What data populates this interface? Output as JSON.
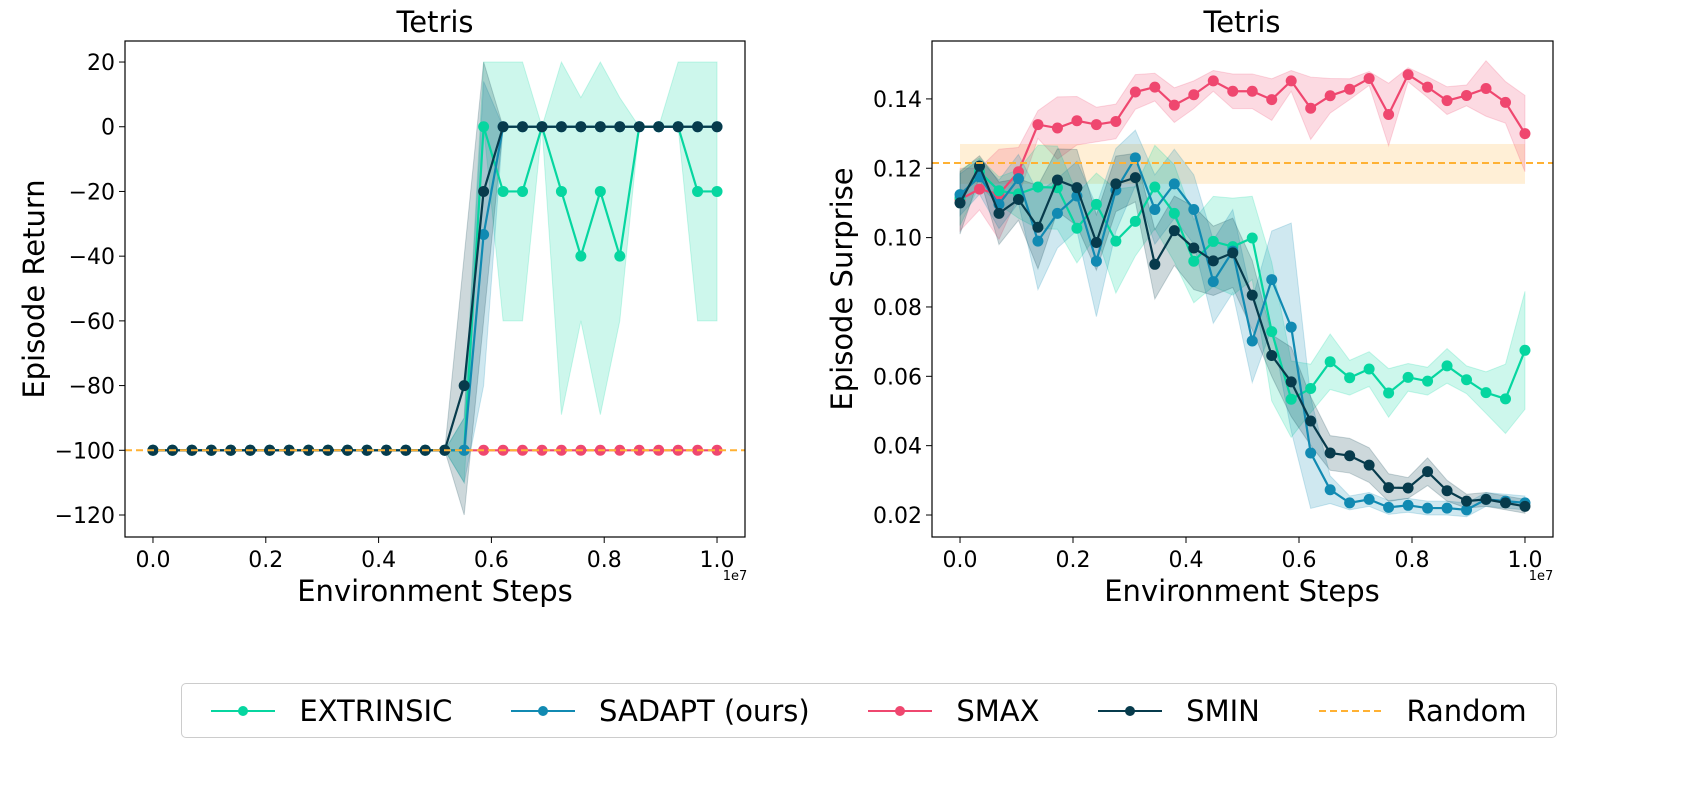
{
  "chart_data": [
    {
      "type": "line",
      "title": "Tetris",
      "xlabel": "Environment Steps",
      "ylabel": "Episode Return",
      "x_offset_label": "1e7",
      "xlim": [
        -0.0496,
        1.0496
      ],
      "ylim": [
        -126.8,
        26.5
      ],
      "xticks": [
        0.0,
        0.2,
        0.4,
        0.6,
        0.8,
        1.0
      ],
      "xtick_labels": [
        "0.0",
        "0.2",
        "0.4",
        "0.6",
        "0.8",
        "1.0"
      ],
      "yticks": [
        20,
        0,
        -20,
        -40,
        -60,
        -80,
        -100,
        -120
      ],
      "ytick_labels": [
        "20",
        "0",
        "−20",
        "−40",
        "−60",
        "−80",
        "−100",
        "−120"
      ],
      "x_scale": 10000000,
      "grid": false,
      "random_baseline": {
        "name": "Random",
        "value": -100,
        "lower": -100,
        "upper": -100
      },
      "series": [
        {
          "name": "SMAX",
          "values": [
            -100,
            -100,
            -100,
            -100,
            -100,
            -100,
            -100,
            -100,
            -100,
            -100,
            -100,
            -100,
            -100,
            -100,
            -100,
            -100,
            -100,
            -100,
            -100,
            -100,
            -100,
            -100,
            -100,
            -100,
            -100,
            -100,
            -100,
            -100,
            -100,
            -100
          ],
          "lower": [
            -100,
            -100,
            -100,
            -100,
            -100,
            -100,
            -100,
            -100,
            -100,
            -100,
            -100,
            -100,
            -100,
            -100,
            -100,
            -100,
            -100,
            -100,
            -100,
            -100,
            -100,
            -100,
            -100,
            -100,
            -100,
            -100,
            -100,
            -100,
            -100,
            -100
          ],
          "upper": [
            -100,
            -100,
            -100,
            -100,
            -100,
            -100,
            -100,
            -100,
            -100,
            -100,
            -100,
            -100,
            -100,
            -100,
            -100,
            -100,
            -100,
            -100,
            -100,
            -100,
            -100,
            -100,
            -100,
            -100,
            -100,
            -100,
            -100,
            -100,
            -100,
            -100
          ]
        },
        {
          "name": "EXTRINSIC",
          "values": [
            -100,
            -100,
            -100,
            -100,
            -100,
            -100,
            -100,
            -100,
            -100,
            -100,
            -100,
            -100,
            -100,
            -100,
            -100,
            -100,
            -100,
            0,
            -20,
            -20,
            0,
            -20,
            -40,
            -20,
            -40,
            0,
            0,
            0,
            -20,
            -20
          ],
          "lower": [
            -100,
            -100,
            -100,
            -100,
            -100,
            -100,
            -100,
            -100,
            -100,
            -100,
            -100,
            -100,
            -100,
            -100,
            -100,
            -100,
            -110,
            0,
            -60,
            -60,
            0,
            -89,
            -60,
            -89,
            -60,
            0,
            0,
            0,
            -60,
            -60
          ],
          "upper": [
            -100,
            -100,
            -100,
            -100,
            -100,
            -100,
            -100,
            -100,
            -100,
            -100,
            -100,
            -100,
            -100,
            -100,
            -100,
            -100,
            -90,
            20,
            20,
            20,
            0,
            20,
            9,
            20,
            9,
            0,
            0,
            20,
            20,
            20
          ]
        },
        {
          "name": "SADAPT (ours)",
          "values": [
            -100,
            -100,
            -100,
            -100,
            -100,
            -100,
            -100,
            -100,
            -100,
            -100,
            -100,
            -100,
            -100,
            -100,
            -100,
            -100,
            -100,
            -33.3,
            0,
            0,
            0,
            0,
            0,
            0,
            0,
            0,
            0,
            0,
            0,
            0
          ],
          "lower": [
            -100,
            -100,
            -100,
            -100,
            -100,
            -100,
            -100,
            -100,
            -100,
            -100,
            -100,
            -100,
            -100,
            -100,
            -100,
            -100,
            -110,
            -80,
            0,
            0,
            0,
            0,
            0,
            0,
            0,
            0,
            0,
            0,
            0,
            0
          ],
          "upper": [
            -100,
            -100,
            -100,
            -100,
            -100,
            -100,
            -100,
            -100,
            -100,
            -100,
            -100,
            -100,
            -100,
            -100,
            -100,
            -100,
            -90,
            14,
            0,
            0,
            0,
            0,
            0,
            0,
            0,
            0,
            0,
            0,
            0,
            0
          ]
        },
        {
          "name": "SMIN",
          "values": [
            -100,
            -100,
            -100,
            -100,
            -100,
            -100,
            -100,
            -100,
            -100,
            -100,
            -100,
            -100,
            -100,
            -100,
            -100,
            -100,
            -80,
            -20,
            0,
            0,
            0,
            0,
            0,
            0,
            0,
            0,
            0,
            0,
            0,
            0
          ],
          "lower": [
            -100,
            -100,
            -100,
            -100,
            -100,
            -100,
            -100,
            -100,
            -100,
            -100,
            -100,
            -100,
            -100,
            -100,
            -100,
            -100,
            -120,
            -60,
            0,
            0,
            0,
            0,
            0,
            0,
            0,
            0,
            0,
            0,
            0,
            0
          ],
          "upper": [
            -100,
            -100,
            -100,
            -100,
            -100,
            -100,
            -100,
            -100,
            -100,
            -100,
            -100,
            -100,
            -100,
            -100,
            -100,
            -100,
            -40,
            20,
            0,
            0,
            0,
            0,
            0,
            0,
            0,
            0,
            0,
            0,
            0,
            0
          ]
        }
      ]
    },
    {
      "type": "line",
      "title": "Tetris",
      "xlabel": "Environment Steps",
      "ylabel": "Episode Surprise",
      "x_offset_label": "1e7",
      "xlim": [
        -0.0496,
        1.0496
      ],
      "ylim": [
        0.01366,
        0.1567
      ],
      "xticks": [
        0.0,
        0.2,
        0.4,
        0.6,
        0.8,
        1.0
      ],
      "xtick_labels": [
        "0.0",
        "0.2",
        "0.4",
        "0.6",
        "0.8",
        "1.0"
      ],
      "yticks": [
        0.14,
        0.12,
        0.1,
        0.08,
        0.06,
        0.04,
        0.02
      ],
      "ytick_labels": [
        "0.14",
        "0.12",
        "0.10",
        "0.08",
        "0.06",
        "0.04",
        "0.02"
      ],
      "x_scale": 10000000,
      "grid": false,
      "random_baseline": {
        "name": "Random",
        "value": 0.1215,
        "lower": 0.1155,
        "upper": 0.127
      },
      "series": [
        {
          "name": "SMAX",
          "values": [
            0.111,
            0.114,
            0.1125,
            0.119,
            0.1326,
            0.1316,
            0.1337,
            0.1326,
            0.1335,
            0.142,
            0.1434,
            0.1382,
            0.1412,
            0.1452,
            0.1422,
            0.1422,
            0.1398,
            0.1452,
            0.1373,
            0.1409,
            0.1428,
            0.1459,
            0.1355,
            0.147,
            0.1434,
            0.1395,
            0.141,
            0.143,
            0.139,
            0.13
          ],
          "halfwidth": [
            0.009,
            0.006,
            0.013,
            0.007,
            0.004,
            0.009,
            0.007,
            0.005,
            0.005,
            0.005,
            0.004,
            0.005,
            0.004,
            0.003,
            0.005,
            0.005,
            0.006,
            0.003,
            0.009,
            0.005,
            0.003,
            0.002,
            0.009,
            0.002,
            0.003,
            0.004,
            0.003,
            0.008,
            0.006,
            0.011
          ]
        },
        {
          "name": "EXTRINSIC",
          "values": [
            0.1115,
            0.119,
            0.1135,
            0.1126,
            0.1146,
            0.1144,
            0.1027,
            0.1096,
            0.099,
            0.1047,
            0.1146,
            0.107,
            0.0932,
            0.0989,
            0.0974,
            0.0999,
            0.0729,
            0.0534,
            0.0565,
            0.0642,
            0.0596,
            0.0621,
            0.0552,
            0.0597,
            0.0586,
            0.063,
            0.059,
            0.0553,
            0.0535,
            0.0675
          ],
          "halfwidth": [
            0.008,
            0.004,
            0.004,
            0.007,
            0.012,
            0.012,
            0.01,
            0.009,
            0.015,
            0.01,
            0.012,
            0.014,
            0.012,
            0.013,
            0.014,
            0.012,
            0.02,
            0.011,
            0.007,
            0.008,
            0.005,
            0.005,
            0.007,
            0.004,
            0.004,
            0.005,
            0.004,
            0.006,
            0.01,
            0.017
          ]
        },
        {
          "name": "SADAPT (ours)",
          "values": [
            0.1124,
            0.1175,
            0.1096,
            0.117,
            0.099,
            0.107,
            0.112,
            0.0932,
            0.1137,
            0.123,
            0.1081,
            0.1155,
            0.1081,
            0.0873,
            0.0961,
            0.0702,
            0.0879,
            0.0742,
            0.0379,
            0.0273,
            0.0235,
            0.0245,
            0.0222,
            0.0228,
            0.022,
            0.022,
            0.0215,
            0.0245,
            0.024,
            0.0235
          ],
          "halfwidth": [
            0.006,
            0.005,
            0.007,
            0.007,
            0.014,
            0.01,
            0.01,
            0.016,
            0.012,
            0.008,
            0.01,
            0.01,
            0.01,
            0.012,
            0.012,
            0.012,
            0.014,
            0.03,
            0.016,
            0.004,
            0.002,
            0.002,
            0.002,
            0.002,
            0.002,
            0.002,
            0.002,
            0.002,
            0.002,
            0.002
          ]
        },
        {
          "name": "SMIN",
          "values": [
            0.11,
            0.1206,
            0.107,
            0.111,
            0.103,
            0.1166,
            0.1144,
            0.0986,
            0.1155,
            0.1173,
            0.0923,
            0.102,
            0.097,
            0.0933,
            0.0956,
            0.0834,
            0.066,
            0.0584,
            0.0471,
            0.0379,
            0.0371,
            0.0344,
            0.0279,
            0.0278,
            0.0325,
            0.027,
            0.024,
            0.0245,
            0.0235,
            0.0225
          ],
          "halfwidth": [
            0.009,
            0.003,
            0.009,
            0.006,
            0.012,
            0.009,
            0.011,
            0.008,
            0.008,
            0.007,
            0.01,
            0.01,
            0.012,
            0.01,
            0.01,
            0.01,
            0.006,
            0.01,
            0.007,
            0.005,
            0.005,
            0.005,
            0.004,
            0.003,
            0.004,
            0.003,
            0.002,
            0.002,
            0.002,
            0.002
          ]
        }
      ]
    }
  ],
  "colors": {
    "EXTRINSIC": "#06d6a0",
    "SADAPT (ours)": "#118ab2",
    "SMAX": "#ef476f",
    "SMIN": "#073b4c",
    "Random": "#ffb133"
  },
  "legend": {
    "placement": "bottom",
    "items": [
      {
        "label": "EXTRINSIC",
        "style": "line-marker"
      },
      {
        "label": "SADAPT (ours)",
        "style": "line-marker"
      },
      {
        "label": "SMAX",
        "style": "line-marker"
      },
      {
        "label": "SMIN",
        "style": "line-marker"
      },
      {
        "label": "Random",
        "style": "dashed"
      }
    ]
  }
}
